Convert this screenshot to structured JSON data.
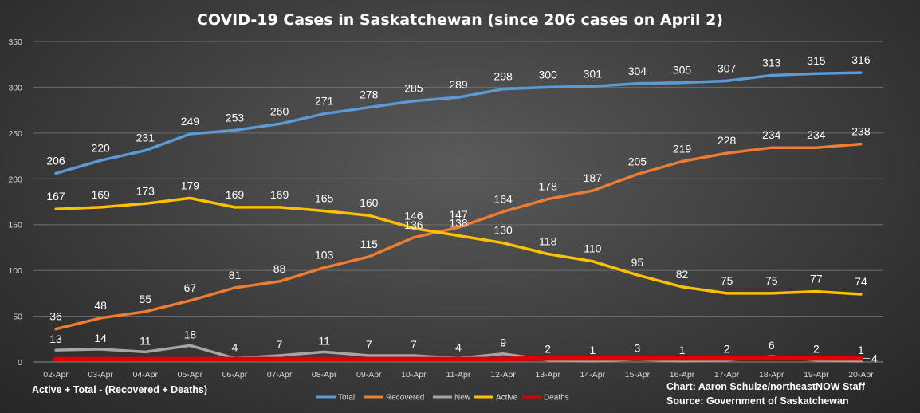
{
  "chart_data": {
    "type": "line",
    "title": "COVID-19 Cases in Saskatchewan (since 206 cases on April 2)",
    "xlabel": "",
    "ylabel": "",
    "ylim": [
      0,
      350
    ],
    "yticks": [
      0,
      50,
      100,
      150,
      200,
      250,
      300,
      350
    ],
    "grid": true,
    "legend_position": "bottom",
    "categories": [
      "02-Apr",
      "03-Apr",
      "04-Apr",
      "05-Apr",
      "06-Apr",
      "07-Apr",
      "08-Apr",
      "09-Apr",
      "10-Apr",
      "11-Apr",
      "12-Apr",
      "13-Apr",
      "14-Apr",
      "15-Apr",
      "16-Apr",
      "17-Apr",
      "18-Apr",
      "19-Apr",
      "20-Apr"
    ],
    "series": [
      {
        "name": "Total",
        "color": "#5b9bd5",
        "values": [
          206,
          220,
          231,
          249,
          253,
          260,
          271,
          278,
          285,
          289,
          298,
          300,
          301,
          304,
          305,
          307,
          313,
          315,
          316
        ]
      },
      {
        "name": "Recovered",
        "color": "#ed7d31",
        "values": [
          36,
          48,
          55,
          67,
          81,
          88,
          103,
          115,
          136,
          147,
          164,
          178,
          187,
          205,
          219,
          228,
          234,
          234,
          238
        ]
      },
      {
        "name": "New",
        "color": "#a5a5a5",
        "values": [
          13,
          14,
          11,
          18,
          4,
          7,
          11,
          7,
          7,
          4,
          9,
          2,
          1,
          3,
          1,
          2,
          6,
          2,
          1
        ]
      },
      {
        "name": "Active",
        "color": "#ffc000",
        "values": [
          167,
          169,
          173,
          179,
          169,
          169,
          165,
          160,
          146,
          138,
          130,
          118,
          110,
          95,
          82,
          75,
          75,
          77,
          74
        ]
      },
      {
        "name": "Deaths",
        "color": "#e00000",
        "values": [
          3,
          3,
          3,
          3,
          3,
          3,
          3,
          3,
          3,
          3,
          3,
          4,
          4,
          4,
          4,
          4,
          4,
          4,
          4
        ],
        "end_label": "4"
      }
    ],
    "annotations": {
      "bottom_left": "Active + Total - (Recovered + Deaths)",
      "credit": "Chart: Aaron Schulze/northeastNOW Staff",
      "source": "Source: Government of Saskatchewan"
    }
  }
}
